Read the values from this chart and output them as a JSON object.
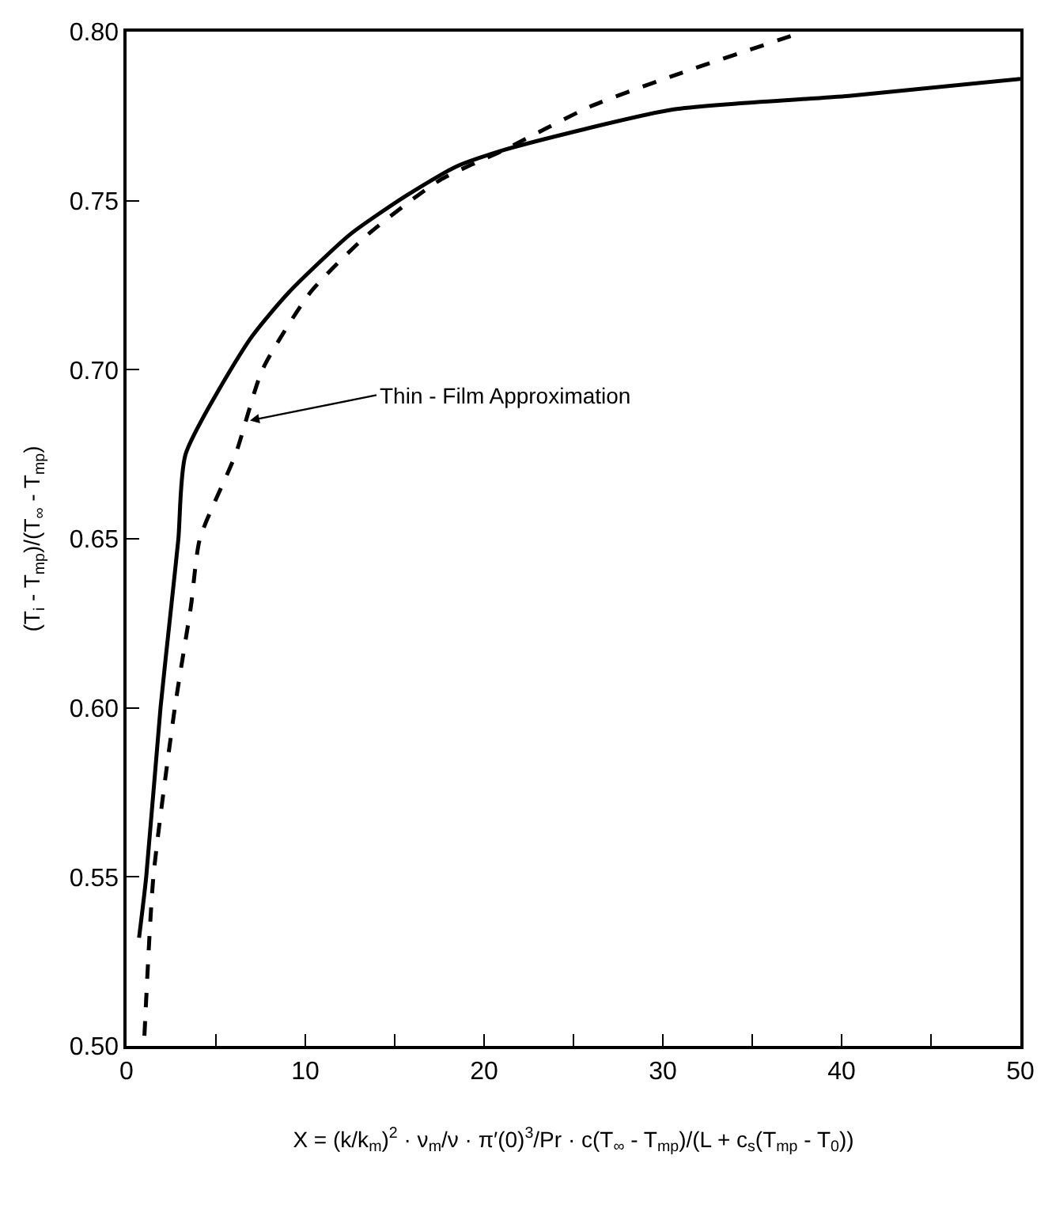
{
  "chart_data": {
    "type": "line",
    "xlabel": "X = (k/k$_{m}$)$^{2}$ · ν$_{m}$/ν · π′(0)$^{3}$/Pr · c(T$_{∞}$ - T$_{mp}$)/(L + c$_{s}$(T$_{mp}$ - T$_{0}$))",
    "ylabel": "(T$_{i}$ - T$_{mp}$)/(T$_{∞}$ - T$_{mp}$)",
    "series": [
      {
        "color": "#000000",
        "line_style": "solid",
        "x": [
          0.7,
          1.1,
          1.9,
          2.5,
          2.9,
          3.3,
          6.9,
          9.1,
          12.5,
          15.5,
          18.4,
          21.1,
          30.6,
          40.4,
          50
        ],
        "values": [
          0.532,
          0.55,
          0.6,
          0.63,
          0.65,
          0.675,
          0.709,
          0.723,
          0.74,
          0.751,
          0.76,
          0.765,
          0.777,
          0.781,
          0.786
        ]
      },
      {
        "color": "#000000",
        "line_style": "dashed",
        "x": [
          1.0,
          1.5,
          2.7,
          3.6,
          4.1,
          6.1,
          7.6,
          10.3,
          13.5,
          17.5,
          21.1,
          26.0,
          30.6,
          37.9
        ],
        "values": [
          0.503,
          0.55,
          0.6,
          0.63,
          0.65,
          0.675,
          0.7,
          0.723,
          0.74,
          0.756,
          0.765,
          0.778,
          0.787,
          0.8
        ]
      }
    ],
    "annotations": [
      {
        "text": "Thin - Film Approximation",
        "x": 6.9,
        "y": 0.685
      }
    ],
    "xlim": [
      0,
      50
    ],
    "ylim": [
      0.5,
      0.8
    ],
    "xticks": [
      0,
      {
        "value": 5,
        "label": null
      },
      10,
      {
        "value": 15,
        "label": null
      },
      20,
      {
        "value": 25,
        "label": null
      },
      30,
      {
        "value": 35,
        "label": null
      },
      40,
      {
        "value": 45,
        "label": null
      },
      50
    ],
    "yticks": [
      {
        "value": 0.5,
        "label": "0.50"
      },
      {
        "value": 0.55,
        "label": "0.55"
      },
      {
        "value": 0.6,
        "label": "0.60"
      },
      {
        "value": 0.65,
        "label": "0.65"
      },
      {
        "value": 0.7,
        "label": "0.70"
      },
      {
        "value": 0.75,
        "label": "0.75"
      },
      {
        "value": 0.8,
        "label": "0.80"
      }
    ],
    "marker": "none"
  }
}
